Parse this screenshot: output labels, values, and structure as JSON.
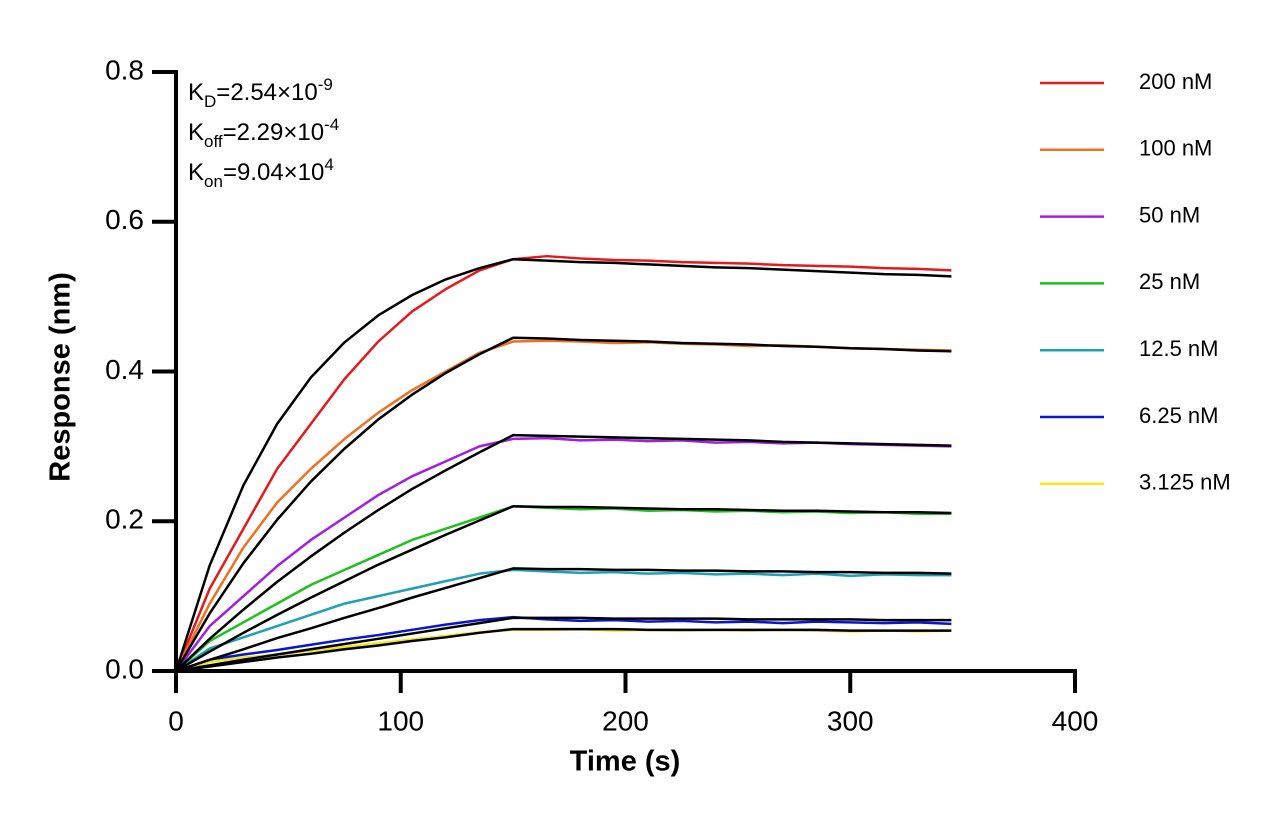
{
  "chart_data": {
    "type": "line",
    "xlabel": "Time (s)",
    "ylabel": "Response (nm)",
    "xlim": [
      0,
      400
    ],
    "ylim": [
      0,
      0.8
    ],
    "xticks": [
      0,
      100,
      200,
      300,
      400
    ],
    "yticks": [
      {
        "value": 0,
        "label": "0.0"
      },
      0.2,
      0.4,
      0.6,
      0.8
    ],
    "legend": "right",
    "annotations": [
      {
        "symbol": "K",
        "subscript": "D",
        "text": "=2.54×10",
        "superscript": "-9"
      },
      {
        "symbol": "K",
        "subscript": "off",
        "text": "=2.29×10",
        "superscript": "-4"
      },
      {
        "symbol": "K",
        "subscript": "on",
        "text": "=9.04×10",
        "superscript": "4"
      }
    ],
    "x": [
      0,
      15,
      30,
      45,
      60,
      75,
      90,
      105,
      120,
      135,
      150,
      165,
      180,
      195,
      210,
      225,
      240,
      255,
      270,
      285,
      300,
      315,
      330,
      345
    ],
    "series": [
      {
        "name": "200 nM",
        "color": "#e41a1c",
        "values": [
          0,
          0.11,
          0.19,
          0.27,
          0.33,
          0.39,
          0.44,
          0.48,
          0.51,
          0.535,
          0.55,
          0.554,
          0.551,
          0.549,
          0.548,
          0.546,
          0.545,
          0.544,
          0.542,
          0.541,
          0.54,
          0.538,
          0.537,
          0.535
        ],
        "fit": {
          "color": "#000000",
          "values": [
            0,
            0.141,
            0.248,
            0.33,
            0.392,
            0.439,
            0.475,
            0.502,
            0.523,
            0.538,
            0.55,
            0.548,
            0.546,
            0.545,
            0.543,
            0.541,
            0.539,
            0.538,
            0.536,
            0.534,
            0.532,
            0.53,
            0.529,
            0.527
          ]
        }
      },
      {
        "name": "100 nM",
        "color": "#f07021",
        "values": [
          0,
          0.09,
          0.165,
          0.225,
          0.27,
          0.31,
          0.345,
          0.375,
          0.4,
          0.425,
          0.44,
          0.441,
          0.44,
          0.438,
          0.439,
          0.437,
          0.436,
          0.434,
          0.435,
          0.433,
          0.431,
          0.43,
          0.429,
          0.428
        ],
        "fit": {
          "color": "#000000",
          "values": [
            0,
            0.077,
            0.144,
            0.202,
            0.253,
            0.297,
            0.336,
            0.369,
            0.398,
            0.423,
            0.445,
            0.444,
            0.442,
            0.441,
            0.44,
            0.438,
            0.437,
            0.436,
            0.434,
            0.433,
            0.431,
            0.43,
            0.428,
            0.427
          ]
        }
      },
      {
        "name": "50 nM",
        "color": "#a020e0",
        "values": [
          0,
          0.06,
          0.1,
          0.14,
          0.175,
          0.205,
          0.235,
          0.26,
          0.28,
          0.3,
          0.31,
          0.311,
          0.308,
          0.309,
          0.307,
          0.308,
          0.305,
          0.306,
          0.304,
          0.305,
          0.303,
          0.302,
          0.301,
          0.3
        ],
        "fit": {
          "color": "#000000",
          "values": [
            0,
            0.043,
            0.082,
            0.119,
            0.153,
            0.185,
            0.215,
            0.243,
            0.268,
            0.292,
            0.315,
            0.314,
            0.313,
            0.312,
            0.311,
            0.31,
            0.309,
            0.308,
            0.306,
            0.305,
            0.304,
            0.303,
            0.302,
            0.301
          ]
        }
      },
      {
        "name": "25 nM",
        "color": "#1fc01f",
        "values": [
          0,
          0.04,
          0.065,
          0.09,
          0.115,
          0.135,
          0.155,
          0.175,
          0.19,
          0.205,
          0.22,
          0.218,
          0.216,
          0.217,
          0.214,
          0.215,
          0.213,
          0.214,
          0.212,
          0.213,
          0.211,
          0.212,
          0.21,
          0.21
        ],
        "fit": {
          "color": "#000000",
          "values": [
            0,
            0.026,
            0.051,
            0.075,
            0.098,
            0.12,
            0.142,
            0.162,
            0.182,
            0.201,
            0.22,
            0.219,
            0.219,
            0.218,
            0.217,
            0.216,
            0.216,
            0.215,
            0.214,
            0.214,
            0.213,
            0.212,
            0.212,
            0.211
          ]
        }
      },
      {
        "name": "12.5 nM",
        "color": "#1fa0b4",
        "values": [
          0,
          0.03,
          0.045,
          0.06,
          0.075,
          0.09,
          0.1,
          0.11,
          0.12,
          0.13,
          0.135,
          0.133,
          0.131,
          0.132,
          0.13,
          0.131,
          0.129,
          0.13,
          0.128,
          0.13,
          0.127,
          0.129,
          0.128,
          0.128
        ],
        "fit": {
          "color": "#000000",
          "values": [
            0,
            0.015,
            0.029,
            0.044,
            0.057,
            0.071,
            0.084,
            0.098,
            0.111,
            0.124,
            0.137,
            0.136,
            0.136,
            0.135,
            0.135,
            0.134,
            0.134,
            0.133,
            0.133,
            0.132,
            0.132,
            0.131,
            0.131,
            0.13
          ]
        }
      },
      {
        "name": "6.25 nM",
        "color": "#0a14d2",
        "values": [
          0,
          0.015,
          0.022,
          0.028,
          0.035,
          0.042,
          0.048,
          0.055,
          0.062,
          0.068,
          0.072,
          0.069,
          0.067,
          0.068,
          0.066,
          0.067,
          0.065,
          0.066,
          0.064,
          0.066,
          0.065,
          0.064,
          0.065,
          0.063
        ],
        "fit": {
          "color": "#000000",
          "values": [
            0,
            0.0075,
            0.015,
            0.022,
            0.029,
            0.036,
            0.043,
            0.05,
            0.057,
            0.064,
            0.071,
            0.071,
            0.071,
            0.07,
            0.07,
            0.07,
            0.07,
            0.069,
            0.069,
            0.069,
            0.069,
            0.068,
            0.068,
            0.068
          ]
        }
      },
      {
        "name": "3.125 nM",
        "color": "#f5e61e",
        "values": [
          0,
          0.012,
          0.018,
          0.022,
          0.027,
          0.032,
          0.037,
          0.042,
          0.047,
          0.052,
          0.055,
          0.055,
          0.056,
          0.054,
          0.055,
          0.054,
          0.055,
          0.054,
          0.055,
          0.054,
          0.053,
          0.054,
          0.053,
          0.054
        ],
        "fit": {
          "color": "#000000",
          "values": [
            0,
            0.006,
            0.012,
            0.018,
            0.023,
            0.029,
            0.034,
            0.04,
            0.045,
            0.051,
            0.056,
            0.056,
            0.056,
            0.056,
            0.055,
            0.055,
            0.055,
            0.055,
            0.055,
            0.055,
            0.054,
            0.054,
            0.054,
            0.054
          ]
        }
      }
    ]
  }
}
